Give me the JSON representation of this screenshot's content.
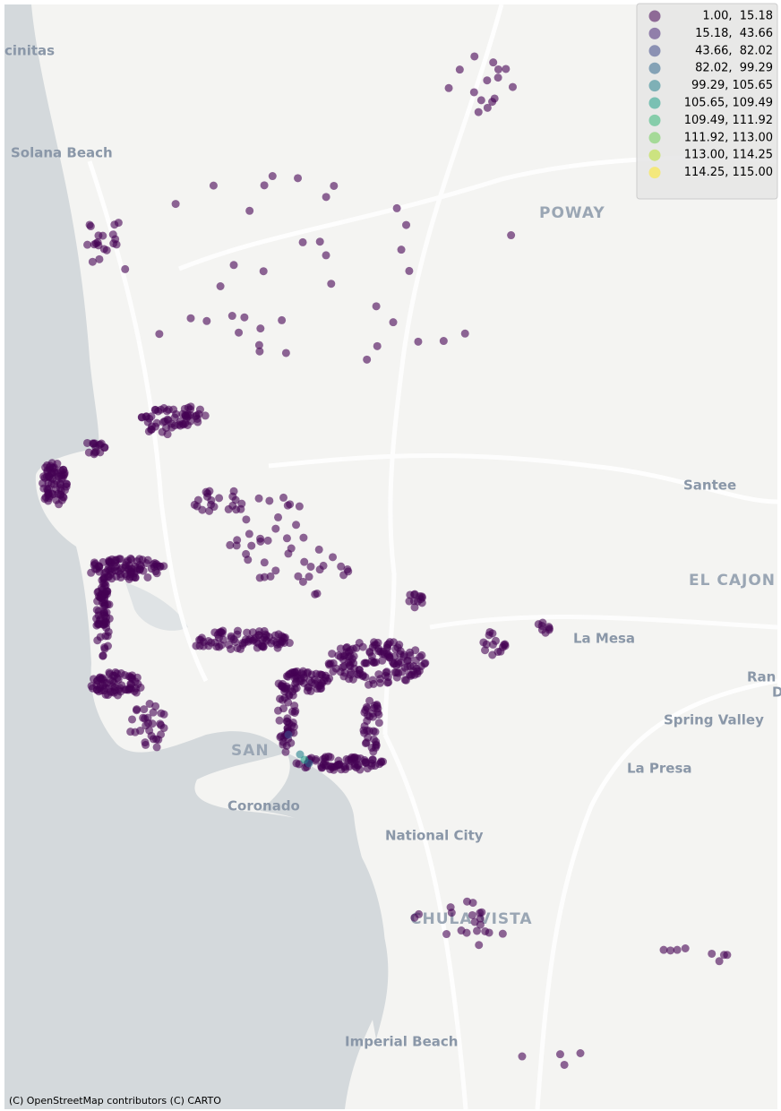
{
  "map": {
    "places": [
      "cinitas",
      "Solana Beach",
      "POWAY",
      "Santee",
      "EL CAJON",
      "La Mesa",
      "Ran",
      "D",
      "Spring Valley",
      "La Presa",
      "SAN",
      "Coronado",
      "National City",
      "CHULA VISTA",
      "Imperial Beach"
    ],
    "legend": {
      "entries": [
        {
          "label": " 1.00,  15.18",
          "color": "#440154"
        },
        {
          "label": " 15.18,  43.66",
          "color": "#482878"
        },
        {
          "label": " 43.66,  82.02",
          "color": "#3e4989"
        },
        {
          "label": " 82.02,  99.29",
          "color": "#31688e"
        },
        {
          "label": " 99.29, 105.65",
          "color": "#26828e"
        },
        {
          "label": "105.65, 109.49",
          "color": "#1f9e89"
        },
        {
          "label": "109.49, 111.92",
          "color": "#35b779"
        },
        {
          "label": "111.92, 113.00",
          "color": "#6ece58"
        },
        {
          "label": "113.00, 114.25",
          "color": "#b5de2b"
        },
        {
          "label": "114.25, 115.00",
          "color": "#fde725"
        }
      ]
    },
    "attribution": "(C) OpenStreetMap contributors (C) CARTO"
  }
}
